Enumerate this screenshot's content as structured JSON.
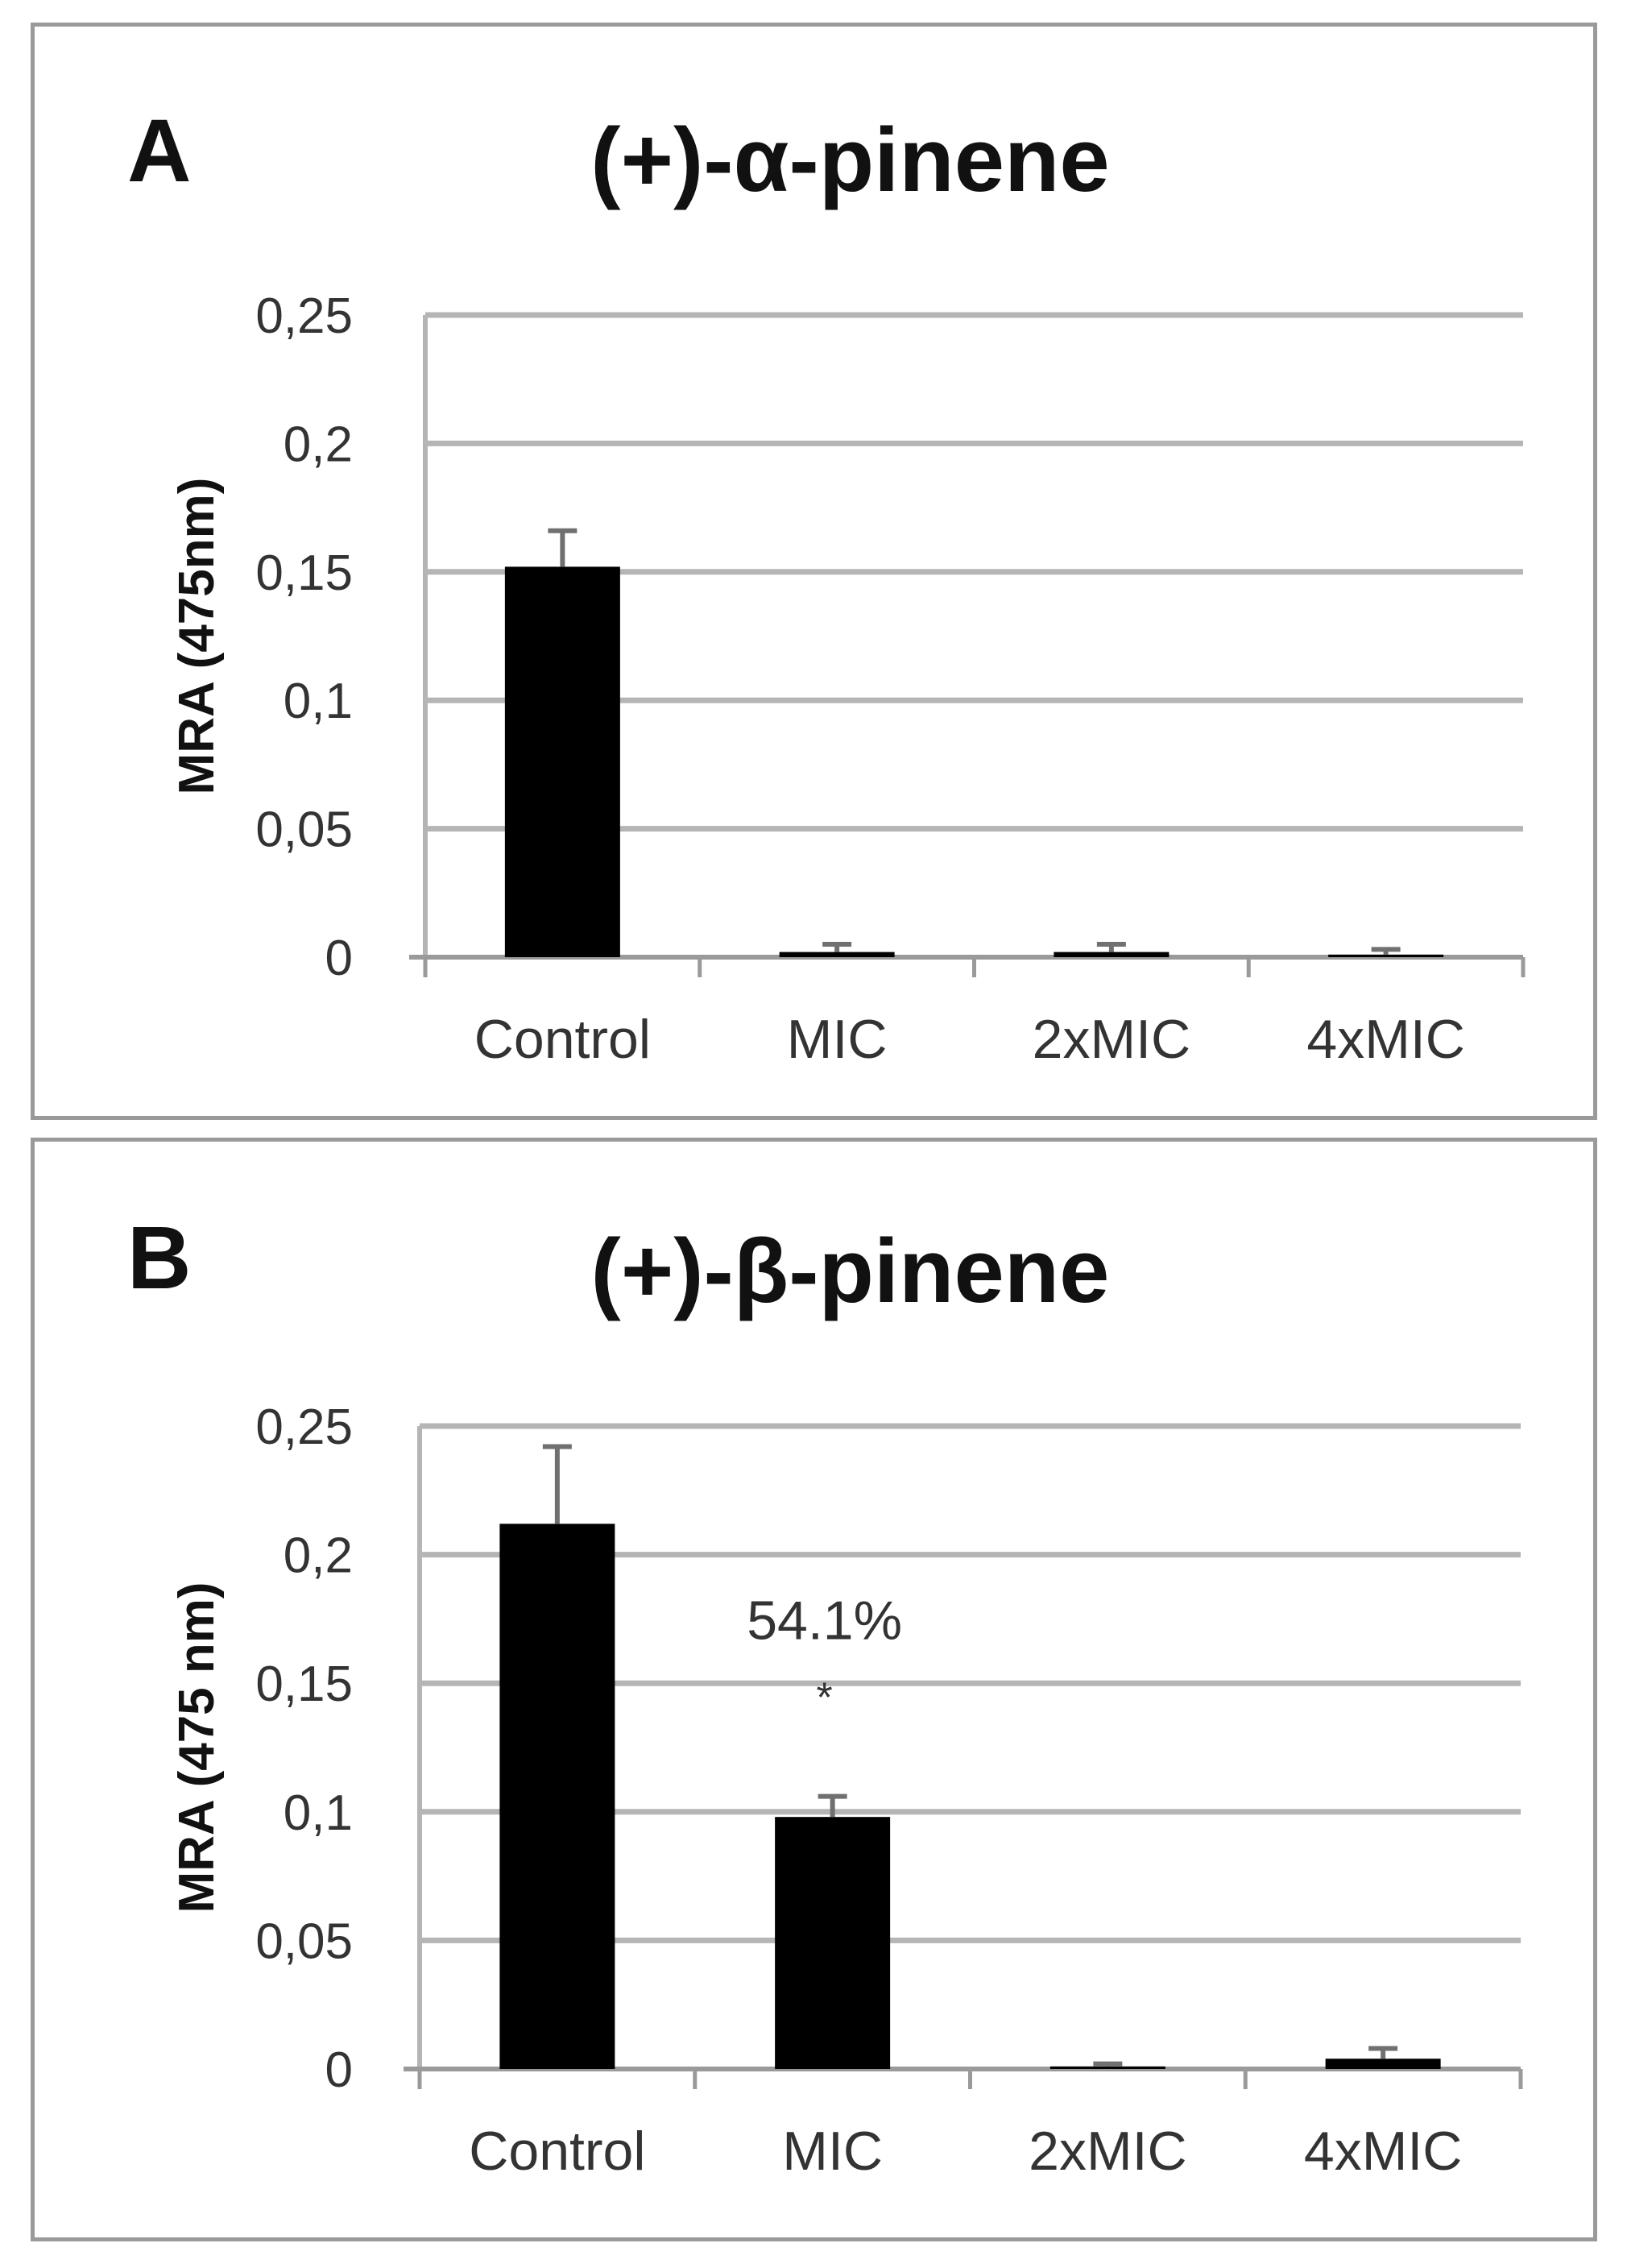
{
  "chart_data": [
    {
      "type": "bar",
      "panel_label": "A",
      "title": "(+)-α-pinene",
      "ylabel": "MRA (475nm)",
      "xlabel": "",
      "categories": [
        "Control",
        "MIC",
        "2xMIC",
        "4xMIC"
      ],
      "values": [
        0.152,
        0.002,
        0.002,
        0.001
      ],
      "errors": [
        0.014,
        0.003,
        0.003,
        0.002
      ],
      "ylim": [
        0,
        0.25
      ],
      "yticks": [
        0,
        0.05,
        0.1,
        0.15,
        0.2,
        0.25
      ],
      "ytick_labels": [
        "0",
        "0,05",
        "0,1",
        "0,15",
        "0,2",
        "0,25"
      ],
      "annotations": [],
      "grid": true,
      "bar_color": "#000000"
    },
    {
      "type": "bar",
      "panel_label": "B",
      "title": "(+)-β-pinene",
      "ylabel": "MRA  (475 nm)",
      "xlabel": "",
      "categories": [
        "Control",
        "MIC",
        "2xMIC",
        "4xMIC"
      ],
      "values": [
        0.212,
        0.098,
        0.001,
        0.004
      ],
      "errors": [
        0.03,
        0.008,
        0.001,
        0.004
      ],
      "ylim": [
        0,
        0.25
      ],
      "yticks": [
        0,
        0.05,
        0.1,
        0.15,
        0.2,
        0.25
      ],
      "ytick_labels": [
        "0",
        "0,05",
        "0,1",
        "0,15",
        "0,2",
        "0,25"
      ],
      "annotations": [
        {
          "category": "MIC",
          "text": "54.1%"
        },
        {
          "category": "MIC",
          "text": "*"
        }
      ],
      "grid": true,
      "bar_color": "#000000"
    }
  ]
}
